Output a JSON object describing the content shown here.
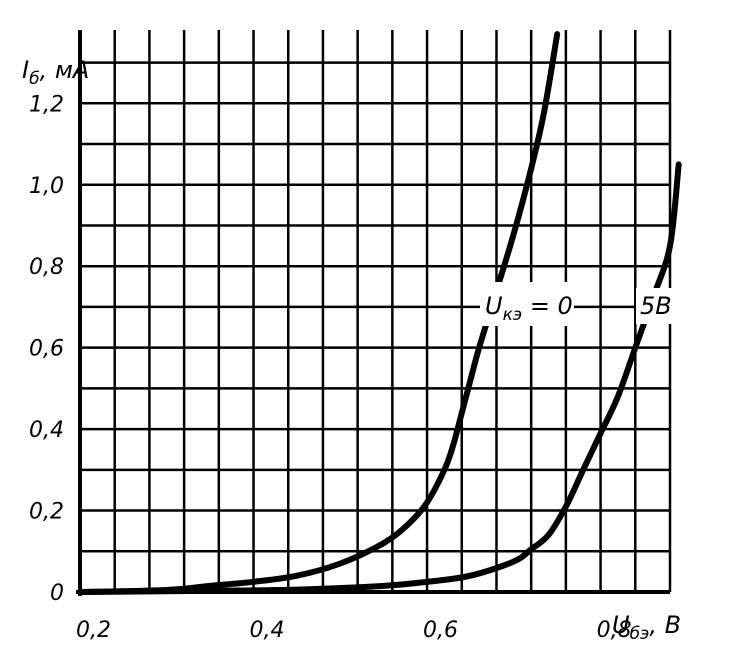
{
  "chart_data": {
    "type": "line",
    "title": "",
    "xlabel": "U",
    "xlabel_sub": "бэ",
    "xlabel_unit": ", В",
    "ylabel": "I",
    "ylabel_sub": "б",
    "ylabel_unit": ", мА",
    "xlim": [
      0.2,
      0.88
    ],
    "ylim": [
      0,
      1.38
    ],
    "grid": true,
    "x_ticks": [
      {
        "value": 0.2,
        "label": "0,2"
      },
      {
        "value": 0.4,
        "label": "0,4"
      },
      {
        "value": 0.6,
        "label": "0,6"
      },
      {
        "value": 0.8,
        "label": "0,8"
      }
    ],
    "y_ticks": [
      {
        "value": 0,
        "label": "0"
      },
      {
        "value": 0.2,
        "label": "0,2"
      },
      {
        "value": 0.4,
        "label": "0,4"
      },
      {
        "value": 0.6,
        "label": "0,6"
      },
      {
        "value": 0.8,
        "label": "0,8"
      },
      {
        "value": 1.0,
        "label": "1,0"
      },
      {
        "value": 1.2,
        "label": "1,2"
      }
    ],
    "series": [
      {
        "name": "Uкэ = 0",
        "label_main": "U",
        "label_sub": "кэ",
        "label_rest": " = 0",
        "x": [
          0.2,
          0.3,
          0.35,
          0.4,
          0.45,
          0.5,
          0.55,
          0.58,
          0.6,
          0.62,
          0.63,
          0.64,
          0.65,
          0.66,
          0.68,
          0.7,
          0.72,
          0.735,
          0.75
        ],
        "y": [
          0.0,
          0.005,
          0.015,
          0.025,
          0.04,
          0.07,
          0.12,
          0.17,
          0.22,
          0.3,
          0.36,
          0.44,
          0.52,
          0.6,
          0.74,
          0.88,
          1.04,
          1.18,
          1.37
        ]
      },
      {
        "name": "5В",
        "label_main": "5В",
        "label_sub": "",
        "label_rest": "",
        "x": [
          0.2,
          0.35,
          0.45,
          0.55,
          0.6,
          0.65,
          0.7,
          0.72,
          0.74,
          0.76,
          0.78,
          0.8,
          0.82,
          0.84,
          0.86,
          0.88,
          0.89
        ],
        "y": [
          0.0,
          0.003,
          0.006,
          0.015,
          0.025,
          0.04,
          0.075,
          0.105,
          0.14,
          0.21,
          0.3,
          0.39,
          0.48,
          0.6,
          0.72,
          0.85,
          1.05
        ]
      }
    ]
  }
}
